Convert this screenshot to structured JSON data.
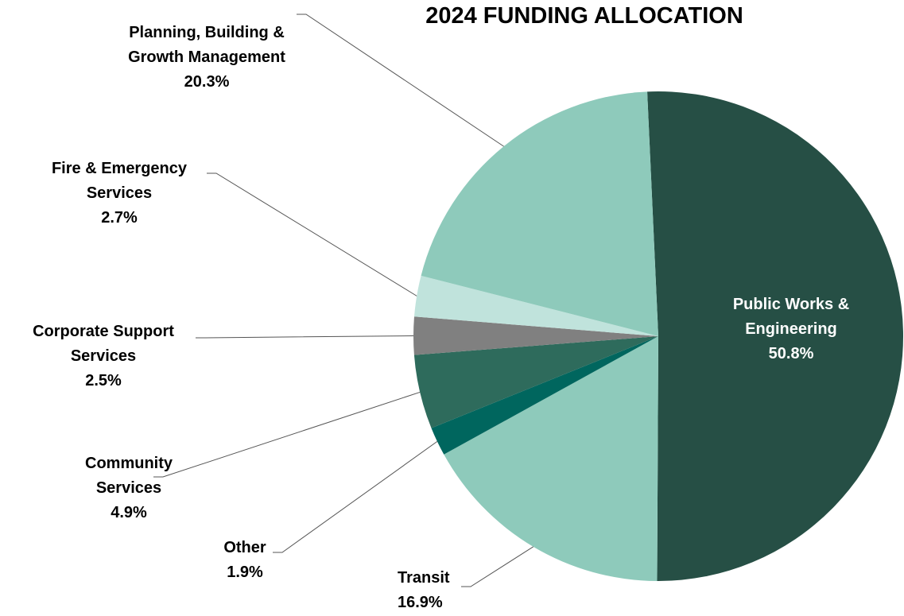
{
  "chart_data": {
    "type": "pie",
    "title": "2024 FUNDING ALLOCATION",
    "categories": [
      "Public Works & Engineering",
      "Transit",
      "Other",
      "Community Services",
      "Corporate Support Services",
      "Fire & Emergency Services",
      "Planning, Building & Growth Management"
    ],
    "values": [
      50.8,
      16.9,
      1.9,
      4.9,
      2.5,
      2.7,
      20.3
    ],
    "value_labels": [
      "50.8%",
      "16.9%",
      "1.9%",
      "4.9%",
      "2.5%",
      "2.7%",
      "20.3%"
    ],
    "colors": [
      "#264f45",
      "#8ecabb",
      "#00665e",
      "#2e6b5c",
      "#808080",
      "#c0e3dc",
      "#8ecabb"
    ]
  }
}
